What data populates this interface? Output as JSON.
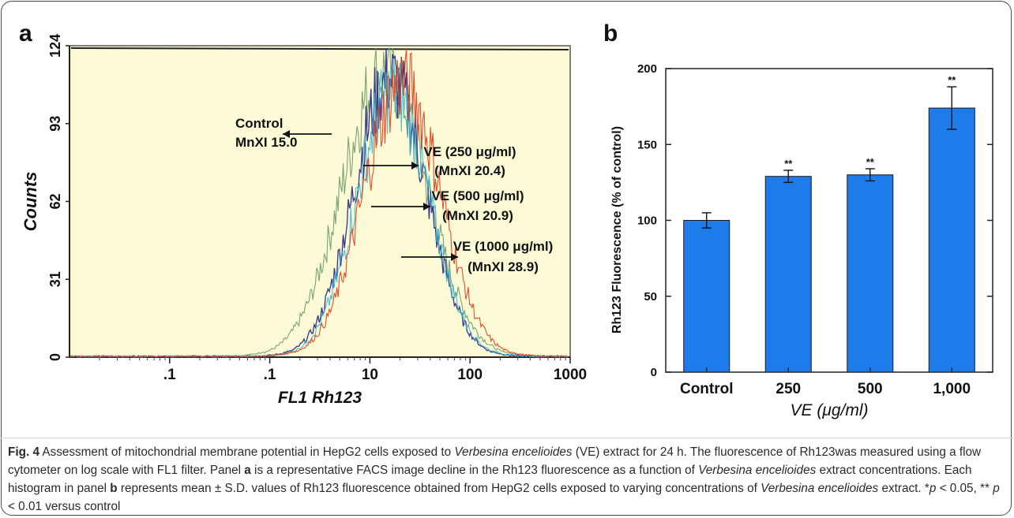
{
  "chart_data": [
    {
      "panel": "a",
      "type": "line",
      "xlabel": "FL1 Rh123",
      "ylabel": "Counts",
      "xscale": "log",
      "xlim": [
        0.01,
        1000
      ],
      "ylim": [
        0,
        124
      ],
      "x_ticks": [
        ".1",
        ".1",
        "10",
        "100",
        "1000"
      ],
      "y_ticks": [
        "0",
        "31",
        "62",
        "93",
        "124"
      ],
      "background": "#fdfbd6",
      "grid": false,
      "series": [
        {
          "name": "Control",
          "color": "#6a9a6a",
          "peak_x": 14,
          "peak_count": 117,
          "width": 0.42
        },
        {
          "name": "VE (250 μg/ml)",
          "color": "#2a2a8a",
          "peak_x": 16,
          "peak_count": 114,
          "width": 0.36
        },
        {
          "name": "VE (500 μg/ml)",
          "color": "#39b9cf",
          "peak_x": 17,
          "peak_count": 109,
          "width": 0.36
        },
        {
          "name": "VE (1000 μg/ml)",
          "color": "#e23a1a",
          "peak_x": 21,
          "peak_count": 113,
          "width": 0.38
        }
      ],
      "annotations": [
        {
          "lines": [
            "Control",
            "MnXI 15.0"
          ],
          "arrow": "left"
        },
        {
          "lines": [
            "VE (250 μg/ml)",
            "(MnXI 20.4)"
          ],
          "arrow": "right"
        },
        {
          "lines": [
            "VE (500 μg/ml)",
            "(MnXI 20.9)"
          ],
          "arrow": "right"
        },
        {
          "lines": [
            "VE (1000 μg/ml)",
            "(MnXI 28.9)"
          ],
          "arrow": "right"
        }
      ]
    },
    {
      "panel": "b",
      "type": "bar",
      "categories": [
        "Control",
        "250",
        "500",
        "1,000"
      ],
      "values": [
        100,
        129,
        130,
        174
      ],
      "errors": [
        5,
        4,
        4,
        14
      ],
      "significance": [
        "",
        "**",
        "**",
        "**"
      ],
      "xlabel": "VE (μg/ml)",
      "ylabel": "Rh123 Fluorescence (% of control)",
      "ylim": [
        0,
        200
      ],
      "y_ticks": [
        0,
        50,
        100,
        150,
        200
      ],
      "bar_color": "#1e7bea",
      "grid": false
    }
  ],
  "caption": {
    "fig_label": "Fig. 4",
    "p1": " Assessment of mitochondrial membrane potential in HepG2 cells exposed to ",
    "species": "Verbesina encelioides",
    "p2": " (VE) extract for 24 h. The fluorescence of Rh123was measured using a flow cytometer on log scale with FL1 filter. Panel ",
    "panel_a": "a",
    "p3": " is a representative FACS image decline in the Rh123 fluorescence as a function of ",
    "p4": " extract concentrations. Each histogram in panel ",
    "panel_b": "b",
    "p5": " represents mean ± S.D. values of Rh123 fluorescence obtained from HepG2 cells exposed to varying concentrations of ",
    "p6": " extract. *",
    "p_sym": "p",
    "p7": " < 0.05, ** ",
    "p8": " < 0.01 versus control"
  }
}
